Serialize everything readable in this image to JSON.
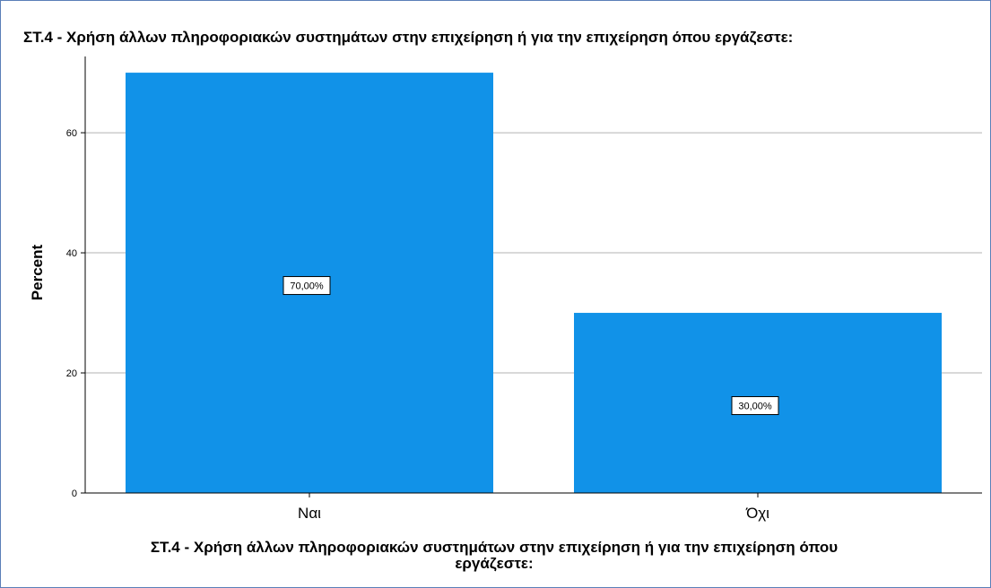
{
  "chart_data": {
    "type": "bar",
    "title": "ΣΤ.4 - Χρήση άλλων πληροφοριακών συστημάτων στην επιχείρηση ή για την επιχείρηση όπου εργάζεστε:",
    "xlabel": "ΣΤ.4 - Χρήση άλλων πληροφοριακών συστημάτων στην επιχείρηση ή για την επιχείρηση όπου εργάζεστε:",
    "ylabel": "Percent",
    "categories": [
      "Ναι",
      "Όχι"
    ],
    "values": [
      70,
      30
    ],
    "data_labels": [
      "70,00%",
      "30,00%"
    ],
    "ylim": [
      0,
      70
    ],
    "yticks": [
      0,
      20,
      40,
      60
    ],
    "grid": true,
    "bar_color": "#1192e8"
  }
}
